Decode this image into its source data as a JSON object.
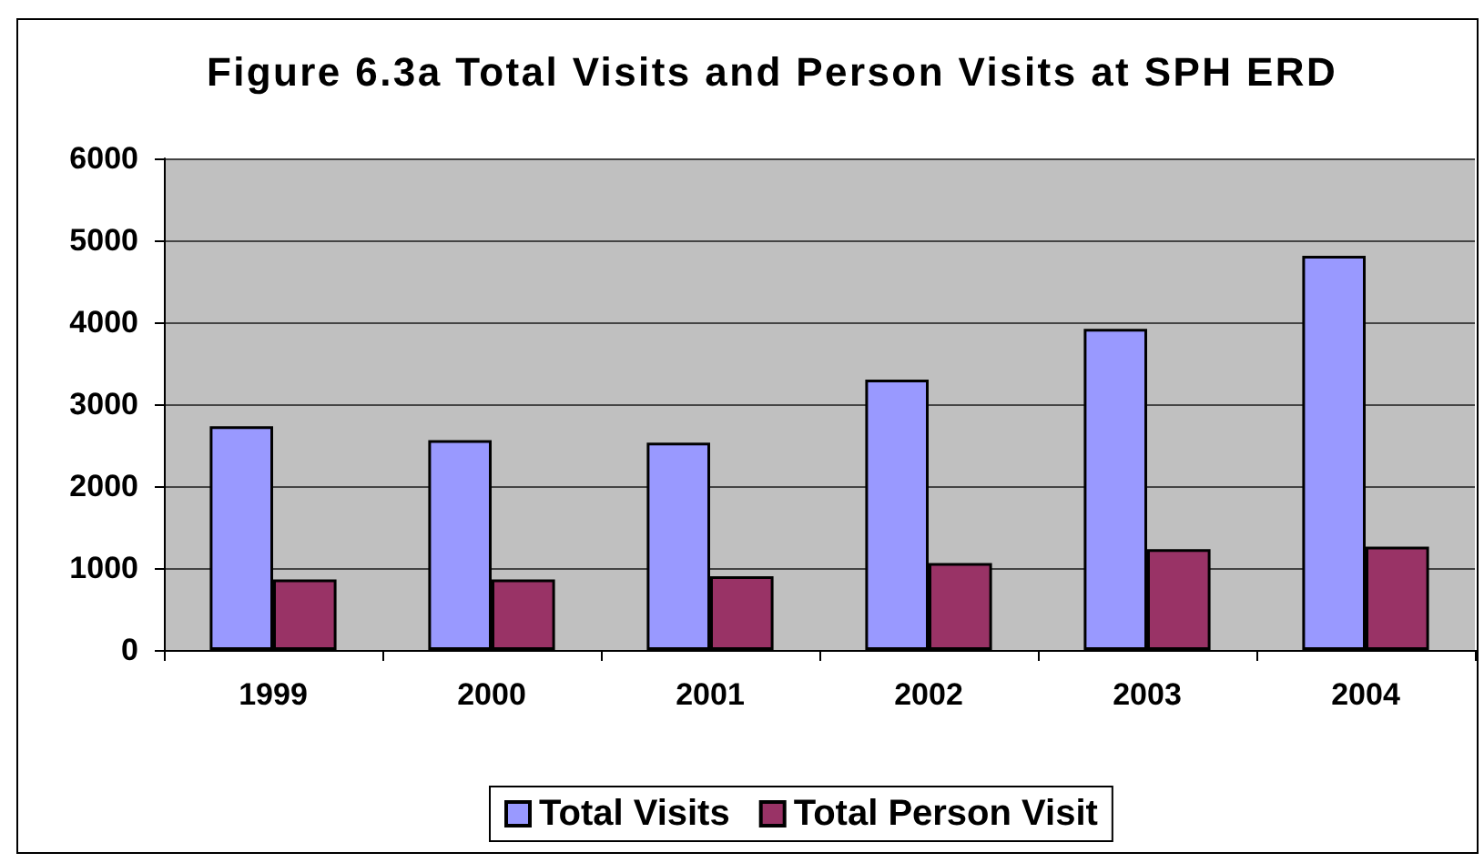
{
  "chart_data": {
    "type": "bar",
    "title": "Figure 6.3a Total Visits and Person Visits at SPH ERD",
    "categories": [
      "1999",
      "2000",
      "2001",
      "2002",
      "2003",
      "2004"
    ],
    "series": [
      {
        "name": "Total Visits",
        "color": "#9999ff",
        "values": [
          2730,
          2560,
          2530,
          3300,
          3920,
          4810
        ]
      },
      {
        "name": "Total Person Visit",
        "color": "#993366",
        "values": [
          860,
          860,
          900,
          1060,
          1230,
          1260
        ]
      }
    ],
    "ylim": [
      0,
      6000
    ],
    "yticks": [
      0,
      1000,
      2000,
      3000,
      4000,
      5000,
      6000
    ],
    "grid": "y",
    "legend": "bottom"
  }
}
